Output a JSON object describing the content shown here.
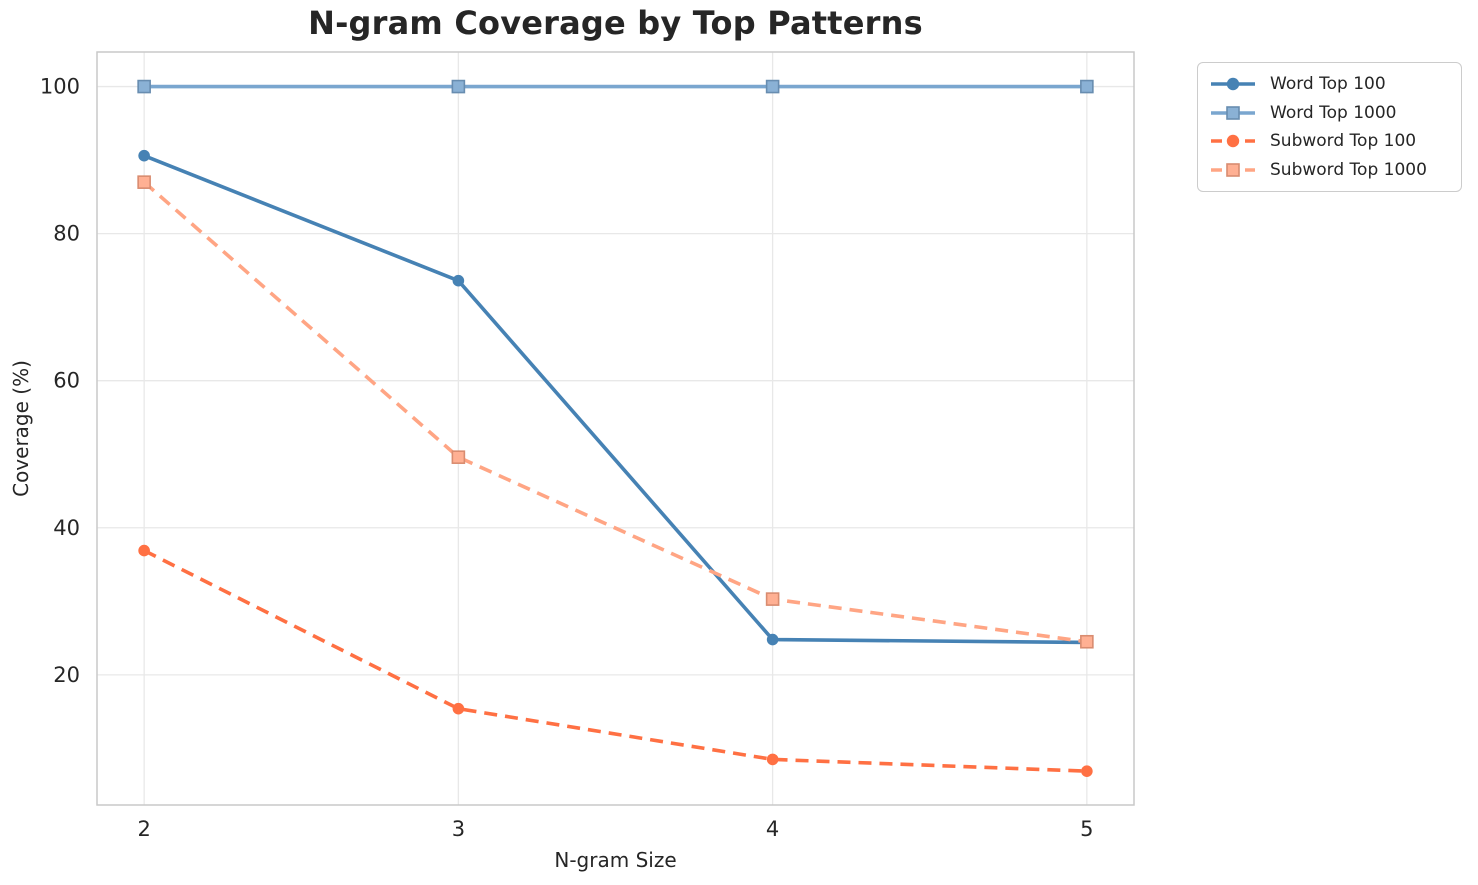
{
  "figure": {
    "background": "#ffffff",
    "text_color": "#262626",
    "grid_color": "#e8e8e8",
    "spine_color": "#c9c9c9"
  },
  "chart_data": {
    "type": "line",
    "title": "N-gram Coverage by Top Patterns",
    "xlabel": "N-gram Size",
    "ylabel": "Coverage (%)",
    "x": [
      2,
      3,
      4,
      5
    ],
    "xticks": [
      "2",
      "3",
      "4",
      "5"
    ],
    "yticks": [
      20,
      40,
      60,
      80,
      100
    ],
    "xlim": [
      1.85,
      5.15
    ],
    "ylim": [
      2.3,
      104.7
    ],
    "grid": true,
    "legend_position": "outside upper right",
    "series": [
      {
        "name": "Word Top 100",
        "values": [
          90.6,
          73.6,
          24.8,
          24.4
        ],
        "color": "#4682B4",
        "linestyle": "solid",
        "marker": "circle"
      },
      {
        "name": "Word Top 1000",
        "values": [
          100,
          100,
          100,
          100
        ],
        "color": "#7AA6CF",
        "linestyle": "solid",
        "marker": "square"
      },
      {
        "name": "Subword Top 100",
        "values": [
          36.9,
          15.4,
          8.5,
          6.9
        ],
        "color": "#FF7043",
        "linestyle": "dashed",
        "marker": "circle"
      },
      {
        "name": "Subword Top 1000",
        "values": [
          87.0,
          49.6,
          30.3,
          24.5
        ],
        "color": "#FFA584",
        "linestyle": "dashed",
        "marker": "square"
      }
    ]
  }
}
